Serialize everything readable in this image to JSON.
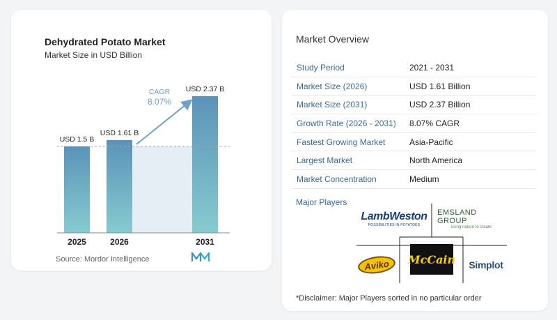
{
  "chart_data": {
    "type": "bar",
    "title": "Dehydrated Potato Market",
    "subtitle": "Market Size in USD Billion",
    "categories": [
      "2025",
      "2026",
      "2031"
    ],
    "values": [
      1.5,
      1.61,
      2.37
    ],
    "data_labels": [
      "USD 1.5 B",
      "USD 1.61 B",
      "USD 2.37 B"
    ],
    "cagr_label": "CAGR",
    "cagr_value": "8.07%",
    "ylim": [
      0,
      2.4
    ],
    "grid": false,
    "colors": {
      "bar_top": "#5b93b8",
      "bar_bottom": "#86cbd0",
      "band": "#e6eef5",
      "arrow": "#6fa1c6",
      "cagr_text": "#6fa1c6"
    }
  },
  "source": "Source: Mordor Intelligence",
  "overview": {
    "title": "Market Overview",
    "rows": [
      {
        "key": "Study Period",
        "value": "2021 - 2031"
      },
      {
        "key": "Market Size (2026)",
        "value": "USD 1.61 Billion"
      },
      {
        "key": "Market Size (2031)",
        "value": "USD 2.37 Billion"
      },
      {
        "key": "Growth Rate (2026 - 2031)",
        "value": "8.07% CAGR"
      },
      {
        "key": "Fastest Growing Market",
        "value": "Asia-Pacific"
      },
      {
        "key": "Largest Market",
        "value": "North America"
      },
      {
        "key": "Market Concentration",
        "value": "Medium"
      }
    ]
  },
  "players": {
    "title": "Major Players",
    "lambweston": {
      "name": "LambWeston",
      "tag": "POSSIBILITIES IN POTATOES"
    },
    "emsland": {
      "name": "EMSLAND GROUP",
      "tag": "using nature to create"
    },
    "aviko": "Aviko",
    "mccain": "McCain",
    "simplot": "Simplot"
  },
  "disclaimer": "*Disclaimer: Major Players sorted in no particular order"
}
